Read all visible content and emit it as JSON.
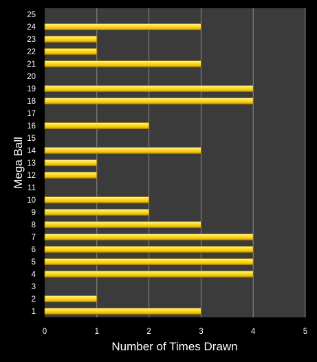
{
  "chart_data": {
    "type": "bar",
    "orientation": "horizontal",
    "title": "",
    "xlabel": "Number of Times Drawn",
    "ylabel": "Mega Ball",
    "xlim": [
      0,
      5
    ],
    "xticks": [
      0,
      1,
      2,
      3,
      4,
      5
    ],
    "grid": "vertical",
    "legend": "none",
    "categories": [
      "1",
      "2",
      "3",
      "4",
      "5",
      "6",
      "7",
      "8",
      "9",
      "10",
      "11",
      "12",
      "13",
      "14",
      "15",
      "16",
      "17",
      "18",
      "19",
      "20",
      "21",
      "22",
      "23",
      "24",
      "25"
    ],
    "values": [
      3,
      1,
      0,
      4,
      4,
      4,
      4,
      3,
      2,
      2,
      0,
      1,
      1,
      3,
      0,
      2,
      0,
      4,
      4,
      0,
      3,
      1,
      1,
      3,
      0
    ],
    "colors": {
      "background": "#000000",
      "plot_background": "#3b3b3b",
      "gridline": "#8c8c8c",
      "bar_fill": "#f2cc0c",
      "bar_highlight": "#fff6a8",
      "bar_edge": "#a07a00",
      "text": "#ffffff"
    }
  }
}
